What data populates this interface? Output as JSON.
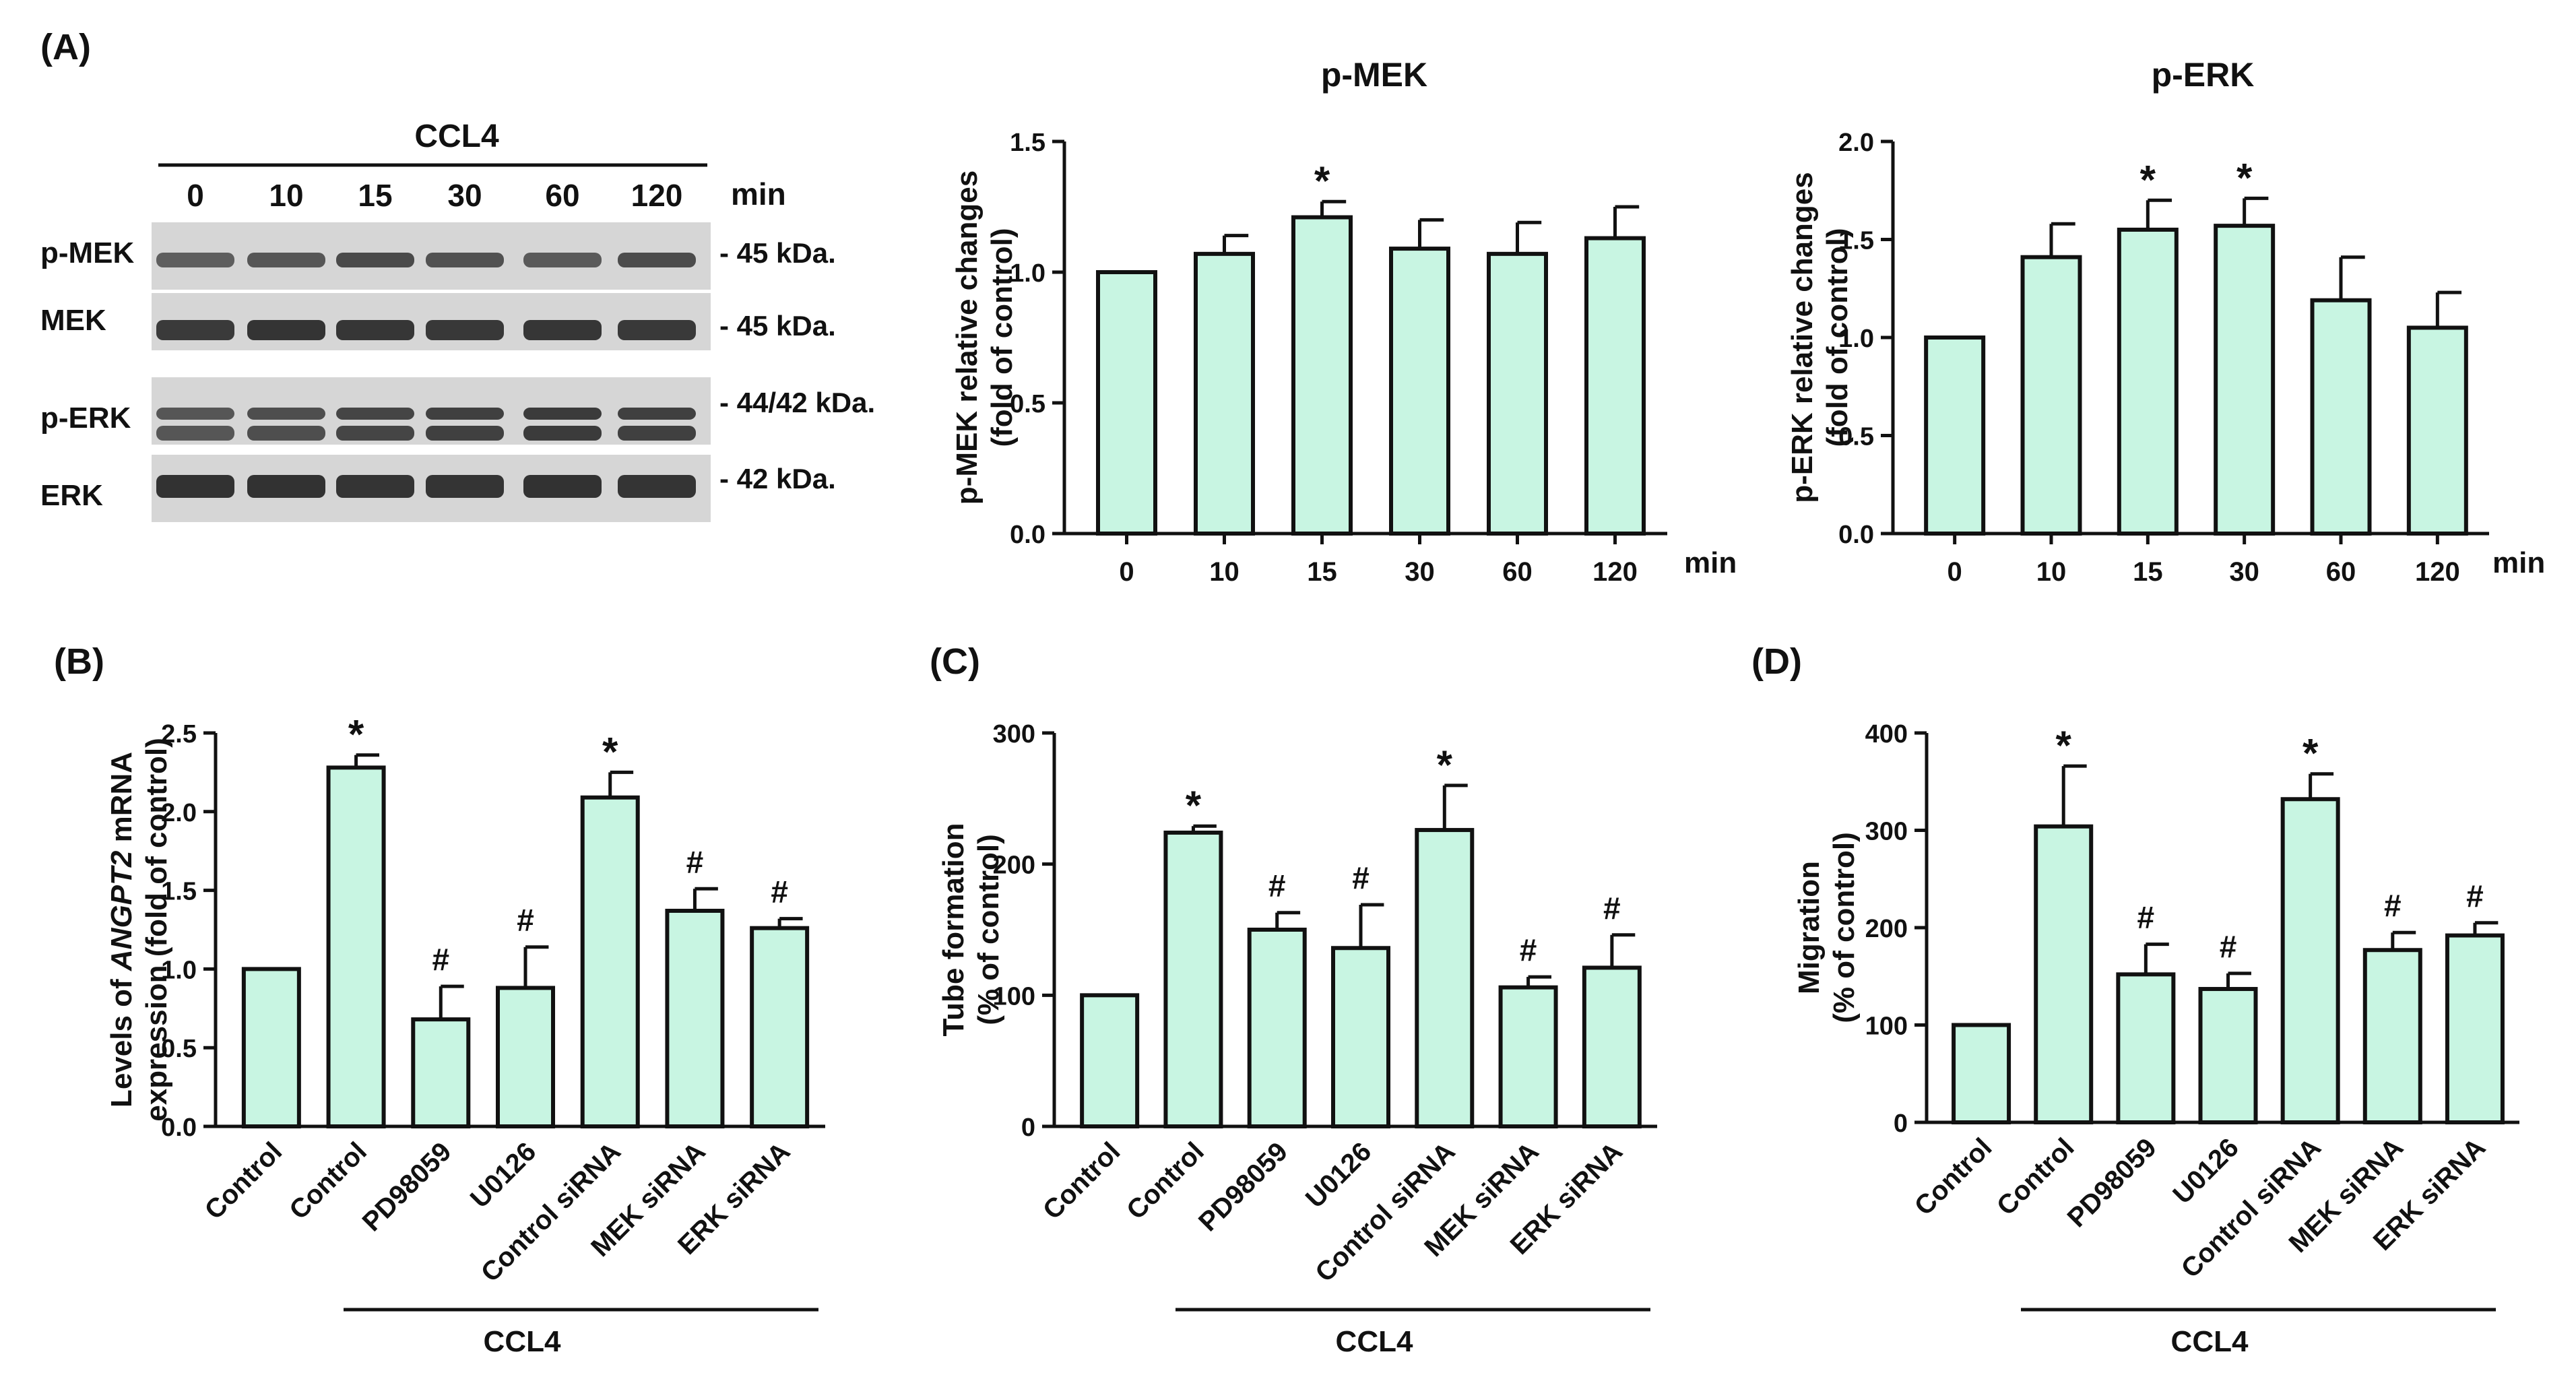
{
  "bar_color": "#c8f5e2",
  "stroke_color": "#111111",
  "panel_a": {
    "label": "(A)",
    "treatment": "CCL4",
    "time_points": [
      "0",
      "10",
      "15",
      "30",
      "60",
      "120"
    ],
    "time_unit": "min",
    "blot_rows": [
      {
        "name": "p-MEK",
        "size": "- 45 kDa."
      },
      {
        "name": "MEK",
        "size": "- 45 kDa."
      },
      {
        "name": "p-ERK",
        "size": "- 44/42 kDa."
      },
      {
        "name": "ERK",
        "size": "- 42 kDa."
      }
    ]
  },
  "panel_b": {
    "label": "(B)",
    "bracket_label": "CCL4"
  },
  "panel_c": {
    "label": "(C)",
    "bracket_label": "CCL4"
  },
  "panel_d": {
    "label": "(D)",
    "bracket_label": "CCL4"
  },
  "chart_data": [
    {
      "id": "pmek",
      "type": "bar",
      "title": "p-MEK",
      "categories": [
        "0",
        "10",
        "15",
        "30",
        "60",
        "120"
      ],
      "values": [
        1.0,
        1.07,
        1.21,
        1.09,
        1.07,
        1.13
      ],
      "errors": [
        0,
        0.07,
        0.06,
        0.11,
        0.12,
        0.12
      ],
      "marks": [
        "",
        "",
        "*",
        "",
        "",
        ""
      ],
      "ylabel": [
        "p-MEK relative changes",
        "(fold of control)"
      ],
      "xlabel": "min",
      "ylim": [
        0,
        1.5
      ],
      "yticks": [
        "0.0",
        "0.5",
        "1.0",
        "1.5"
      ]
    },
    {
      "id": "perk",
      "type": "bar",
      "title": "p-ERK",
      "categories": [
        "0",
        "10",
        "15",
        "30",
        "60",
        "120"
      ],
      "values": [
        1.0,
        1.41,
        1.55,
        1.57,
        1.19,
        1.05
      ],
      "errors": [
        0,
        0.17,
        0.15,
        0.14,
        0.22,
        0.18
      ],
      "marks": [
        "",
        "",
        "*",
        "*",
        "",
        ""
      ],
      "ylabel": [
        "p-ERK relative changes",
        "(fold of control)"
      ],
      "xlabel": "min",
      "ylim": [
        0,
        2.0
      ],
      "yticks": [
        "0.0",
        "0.5",
        "1.0",
        "1.5",
        "2.0"
      ]
    },
    {
      "id": "angpt2",
      "type": "bar",
      "title": "",
      "categories": [
        "Control",
        "Control",
        "PD98059",
        "U0126",
        "Control siRNA",
        "MEK siRNA",
        "ERK siRNA"
      ],
      "values": [
        1.0,
        2.28,
        0.68,
        0.88,
        2.09,
        1.37,
        1.26
      ],
      "errors": [
        0,
        0.08,
        0.21,
        0.26,
        0.16,
        0.14,
        0.06
      ],
      "marks": [
        "",
        "*",
        "#",
        "#",
        "*",
        "#",
        "#"
      ],
      "ylabel_parts": [
        "Levels of ",
        "ANGPT2",
        " mRNA"
      ],
      "ylabel": [
        "Levels of ANGPT2 mRNA",
        "expression (fold of control)"
      ],
      "xlabel": "",
      "ylim": [
        0,
        2.5
      ],
      "yticks": [
        "0.0",
        "0.5",
        "1.0",
        "1.5",
        "2.0",
        "2.5"
      ]
    },
    {
      "id": "tube",
      "type": "bar",
      "title": "",
      "categories": [
        "Control",
        "Control",
        "PD98059",
        "U0126",
        "Control siRNA",
        "MEK siRNA",
        "ERK siRNA"
      ],
      "values": [
        100,
        224,
        150,
        136,
        226,
        106,
        121
      ],
      "errors": [
        0,
        5,
        13,
        33,
        34,
        8,
        25
      ],
      "marks": [
        "",
        "*",
        "#",
        "#",
        "*",
        "#",
        "#"
      ],
      "ylabel": [
        "Tube formation",
        "(% of control)"
      ],
      "xlabel": "",
      "ylim": [
        0,
        300
      ],
      "yticks": [
        "0",
        "100",
        "200",
        "300"
      ]
    },
    {
      "id": "migration",
      "type": "bar",
      "title": "",
      "categories": [
        "Control",
        "Control",
        "PD98059",
        "U0126",
        "Control siRNA",
        "MEK siRNA",
        "ERK siRNA"
      ],
      "values": [
        100,
        304,
        152,
        137,
        332,
        177,
        192
      ],
      "errors": [
        0,
        62,
        31,
        16,
        26,
        18,
        13
      ],
      "marks": [
        "",
        "*",
        "#",
        "#",
        "*",
        "#",
        "#"
      ],
      "ylabel": [
        "Migration",
        "(% of control)"
      ],
      "xlabel": "",
      "ylim": [
        0,
        400
      ],
      "yticks": [
        "0",
        "100",
        "200",
        "300",
        "400"
      ]
    }
  ]
}
